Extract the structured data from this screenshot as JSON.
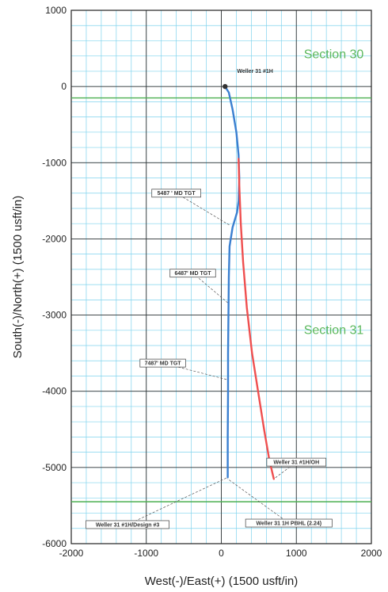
{
  "colors": {
    "background": "#ffffff",
    "minor_grid": "#7fd3ee",
    "major_grid": "#333333",
    "section_line": "#4caf50",
    "section_text": "#5cb85c",
    "design_line": "#3a7fd0",
    "actual_line": "#ef4f4f",
    "leader": "#555555",
    "well_marker": "#333333"
  },
  "chart_data": {
    "type": "line",
    "xlabel": "West(-)/East(+) (1500 usft/in)",
    "ylabel": "South(-)/North(+) (1500 usft/in)",
    "xlim": [
      -2000,
      2000
    ],
    "ylim": [
      -6000,
      1000
    ],
    "xticks": [
      -2000,
      -1000,
      0,
      1000,
      2000
    ],
    "yticks": [
      1000,
      0,
      -1000,
      -2000,
      -3000,
      -4000,
      -5000,
      -6000
    ],
    "grid": true,
    "section_lines": [
      {
        "y": -150,
        "label": "Section 30",
        "label_x": 1100,
        "label_y": 370
      },
      {
        "y": -5450,
        "label": "Section 31",
        "label_x": 1100,
        "label_y": -3250
      }
    ],
    "well_label": {
      "text": "Weller 31 #1H",
      "x": 450,
      "y": 180
    },
    "series": [
      {
        "name": "Weller 31 #1H/Design #3",
        "color_key": "design_line",
        "x": [
          50,
          100,
          150,
          200,
          230,
          240,
          230,
          210,
          150,
          110,
          100,
          95,
          90,
          90,
          85,
          85
        ],
        "y": [
          0,
          -80,
          -300,
          -600,
          -900,
          -1200,
          -1500,
          -1650,
          -1850,
          -2100,
          -2500,
          -3000,
          -3500,
          -4000,
          -4600,
          -5130
        ]
      },
      {
        "name": "Weller 31 #1H/OH",
        "color_key": "actual_line",
        "x": [
          230,
          240,
          260,
          290,
          340,
          410,
          490,
          570,
          640,
          700
        ],
        "y": [
          -950,
          -1300,
          -1800,
          -2300,
          -2900,
          -3500,
          -4000,
          -4500,
          -4900,
          -5150
        ]
      }
    ],
    "annotations": [
      {
        "text": "5487 ' MD TGT",
        "box_x": -600,
        "box_y": -1400,
        "point_x": 110,
        "point_y": -1820
      },
      {
        "text": "6487' MD TGT",
        "box_x": -380,
        "box_y": -2450,
        "point_x": 100,
        "point_y": -2850
      },
      {
        "text": "7487' MD TGT",
        "box_x": -780,
        "box_y": -3630,
        "point_x": 90,
        "point_y": -3850
      },
      {
        "text": "Weller 31 #1H/OH",
        "box_x": 1000,
        "box_y": -4930,
        "point_x": 700,
        "point_y": -5150
      },
      {
        "text": "Weller 31 #1H/Design #3",
        "box_x": -1250,
        "box_y": -5750,
        "point_x": 85,
        "point_y": -5130
      },
      {
        "text": "Weller 31 1H PBHL (2.24)",
        "box_x": 900,
        "box_y": -5730,
        "point_x": 85,
        "point_y": -5150
      }
    ]
  }
}
